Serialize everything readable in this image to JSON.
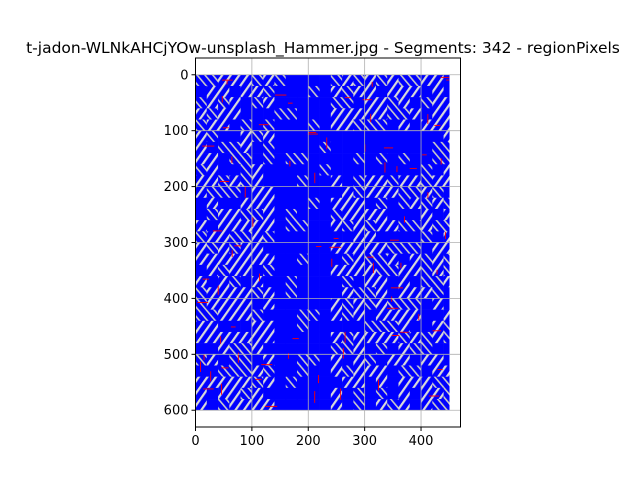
{
  "chart_data": {
    "type": "heatmap",
    "title": "t-jadon-WLNkAHCjYOw-unsplash_Hammer.jpg - Segments: 342 - regionPixels",
    "xlabel": "",
    "ylabel": "",
    "xlim": [
      0,
      470
    ],
    "ylim": [
      630,
      -30
    ],
    "image_extent": {
      "x": [
        0,
        450
      ],
      "y": [
        0,
        600
      ]
    },
    "x_ticks": [
      0,
      100,
      200,
      300,
      400
    ],
    "y_ticks": [
      0,
      100,
      200,
      300,
      400,
      500,
      600
    ],
    "grid": true,
    "grid_step": 20,
    "segments": 342,
    "colors": {
      "segment_fill": "#0000ff",
      "background_patch": "#d3d3d3",
      "hatch_dark": "#7f7f7f",
      "boundary": "#ff0000",
      "grid": "#b0b0b0",
      "axis": "#000000"
    },
    "description_of_marks": "blue hatched region-pixel segments over grey patches with red segment boundaries"
  }
}
